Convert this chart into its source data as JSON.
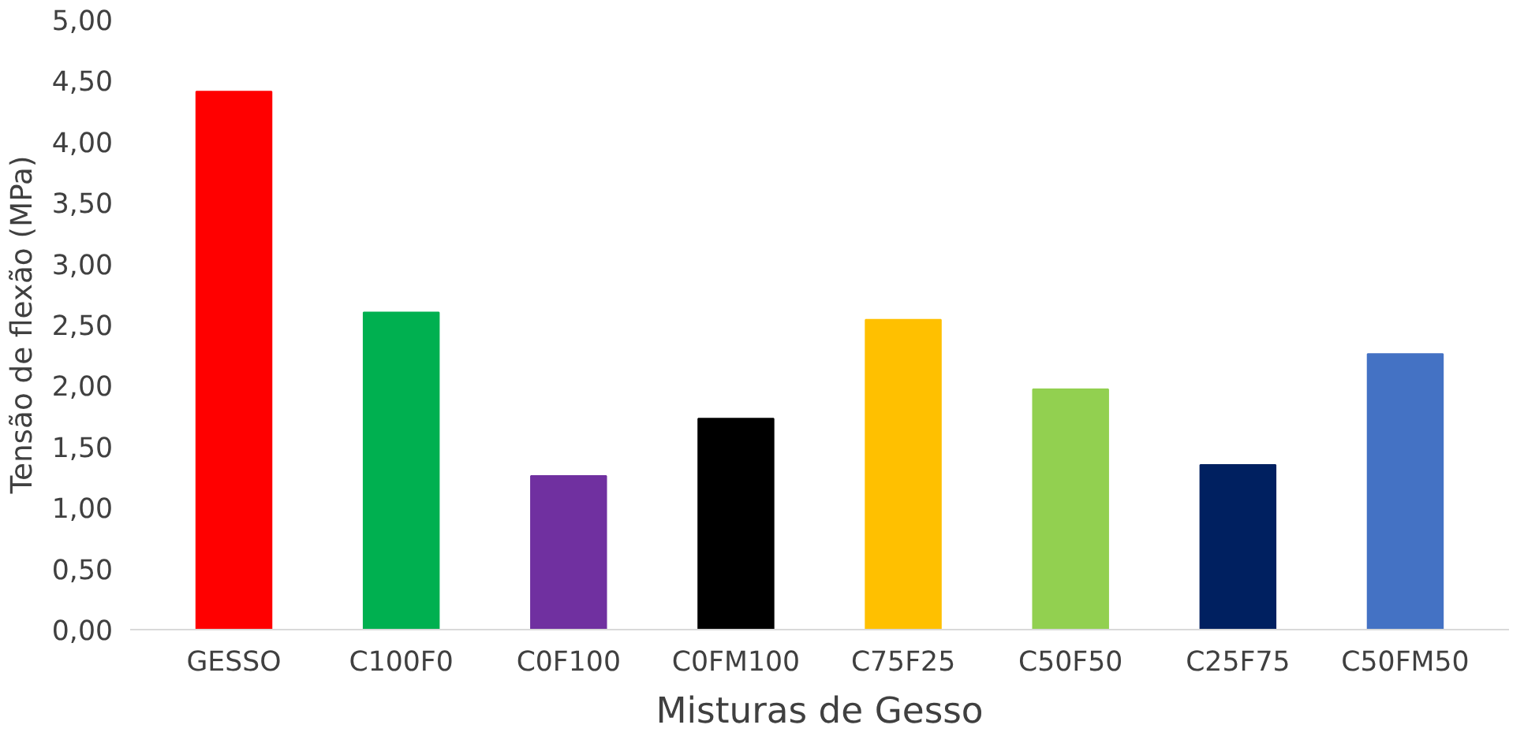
{
  "chart_data": {
    "type": "bar",
    "xlabel": "Misturas de Gesso",
    "ylabel": "Tensão de flexão (MPa)",
    "categories": [
      "GESSO",
      "C100F0",
      "C0F100",
      "C0FM100",
      "C75F25",
      "C50F50",
      "C25F75",
      "C50FM50"
    ],
    "values": [
      4.41,
      2.6,
      1.26,
      1.73,
      2.54,
      1.97,
      1.35,
      2.26
    ],
    "colors": [
      "#ff0000",
      "#00b050",
      "#7030a0",
      "#000000",
      "#ffc000",
      "#92d050",
      "#002060",
      "#4472c4"
    ],
    "ylim": [
      0,
      5
    ],
    "yticks": [
      {
        "value": 0,
        "label": "0,00"
      },
      {
        "value": 0.5,
        "label": "0,50"
      },
      {
        "value": 1,
        "label": "1,00"
      },
      {
        "value": 1.5,
        "label": "1,50"
      },
      {
        "value": 2,
        "label": "2,00"
      },
      {
        "value": 2.5,
        "label": "2,50"
      },
      {
        "value": 3,
        "label": "3,00"
      },
      {
        "value": 3.5,
        "label": "3,50"
      },
      {
        "value": 4,
        "label": "4,00"
      },
      {
        "value": 4.5,
        "label": "4,50"
      },
      {
        "value": 5,
        "label": "5,00"
      }
    ],
    "grid": false
  }
}
